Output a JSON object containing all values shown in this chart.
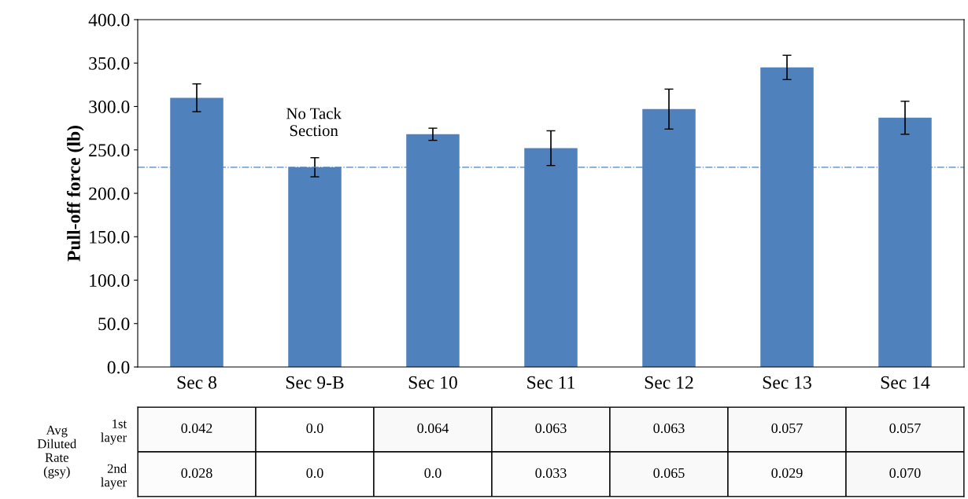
{
  "chart_data": [
    {
      "type": "bar",
      "ylabel": "Pull-off force (lb)",
      "categories": [
        "Sec 8",
        "Sec 9-B",
        "Sec 10",
        "Sec 11",
        "Sec 12",
        "Sec 13",
        "Sec 14"
      ],
      "values": [
        310,
        230,
        268,
        252,
        297,
        345,
        287
      ],
      "errors": [
        16,
        11,
        7,
        20,
        23,
        14,
        19
      ],
      "color": "#4f81bd",
      "ylim": [
        0,
        400
      ],
      "yticks": [
        {
          "value": 0,
          "label": "0.0"
        },
        {
          "value": 50,
          "label": "50.0"
        },
        {
          "value": 100,
          "label": "100.0"
        },
        {
          "value": 150,
          "label": "150.0"
        },
        {
          "value": 200,
          "label": "200.0"
        },
        {
          "value": 250,
          "label": "250.0"
        },
        {
          "value": 300,
          "label": "300.0"
        },
        {
          "value": 350,
          "label": "350.0"
        },
        {
          "value": 400,
          "label": "400.0"
        }
      ],
      "ref_lines": [
        {
          "axis": "y",
          "value": 230,
          "label": null,
          "color": "#4f81bd",
          "line_style": "dashdot"
        }
      ],
      "annotations": [
        "No Tack\nSection"
      ],
      "grid": false,
      "legend": false
    },
    {
      "type": "heatmap",
      "ylabel": "Avg\nDiluted\nRate\n(gsy)",
      "categories": [
        null,
        null,
        null,
        null,
        null,
        null,
        null
      ],
      "y_categories": [
        "1st\nlayer",
        "2nd\nlayer"
      ],
      "cells": [
        [
          0.042,
          0.0,
          0.064,
          0.063,
          0.063,
          0.057,
          0.057
        ],
        [
          0.028,
          0.0,
          0.0,
          0.033,
          0.065,
          0.029,
          0.07
        ]
      ],
      "cell_labels": [
        [
          "0.042",
          "0.0",
          "0.064",
          "0.063",
          "0.063",
          "0.057",
          "0.057"
        ],
        [
          "0.028",
          "0.0",
          "0.0",
          "0.033",
          "0.065",
          "0.029",
          "0.070"
        ]
      ],
      "tick_labels": "y"
    }
  ]
}
